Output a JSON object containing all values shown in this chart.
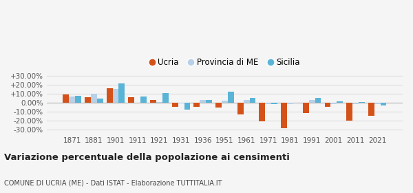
{
  "years": [
    1871,
    1881,
    1901,
    1911,
    1921,
    1931,
    1936,
    1951,
    1961,
    1971,
    1981,
    1991,
    2001,
    2011,
    2021
  ],
  "ucria": [
    9.0,
    6.0,
    16.0,
    6.0,
    2.5,
    -4.5,
    -5.0,
    -5.5,
    -13.5,
    -21.0,
    -29.0,
    -11.5,
    -4.5,
    -20.5,
    -15.0
  ],
  "provincia_me": [
    7.0,
    9.5,
    15.0,
    -0.5,
    0.5,
    -1.0,
    3.0,
    2.0,
    2.5,
    -1.5,
    -1.5,
    2.5,
    -2.0,
    -1.5,
    -1.5
  ],
  "sicilia": [
    7.5,
    4.5,
    21.5,
    7.0,
    10.5,
    -8.0,
    2.5,
    12.0,
    5.5,
    -1.5,
    0.0,
    5.0,
    1.5,
    0.5,
    -3.5
  ],
  "color_ucria": "#d4521a",
  "color_provincia": "#b8d0e8",
  "color_sicilia": "#5ab4d6",
  "title": "Variazione percentuale della popolazione ai censimenti",
  "subtitle": "COMUNE DI UCRIA (ME) - Dati ISTAT - Elaborazione TUTTITALIA.IT",
  "ylabel_ticks": [
    "-30.00%",
    "-20.00%",
    "-10.00%",
    "0.00%",
    "+10.00%",
    "+20.00%",
    "+30.00%"
  ],
  "ytick_vals": [
    -30,
    -20,
    -10,
    0,
    10,
    20,
    30
  ],
  "ylim": [
    -35,
    35
  ],
  "background_color": "#f5f5f5",
  "grid_color": "#dddddd",
  "bar_width": 0.28
}
